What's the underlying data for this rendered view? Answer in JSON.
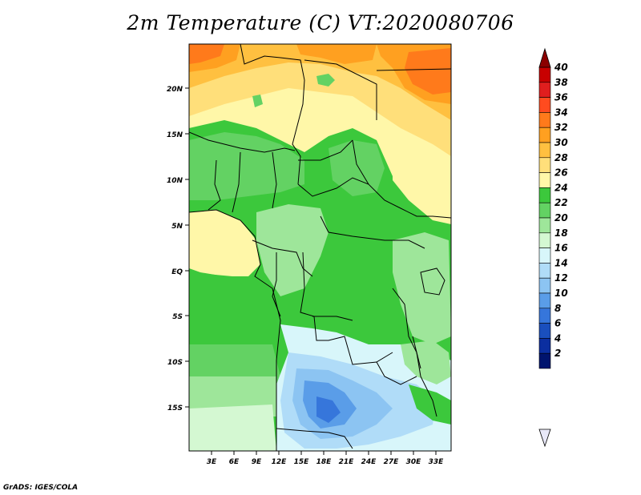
{
  "title": "2m Temperature (C) VT:2020080706",
  "footer": "GrADS: IGES/COLA",
  "map": {
    "lat_labels": [
      "20N",
      "15N",
      "10N",
      "5N",
      "EQ",
      "5S",
      "10S",
      "15S"
    ],
    "lon_labels": [
      "3E",
      "6E",
      "9E",
      "12E",
      "15E",
      "18E",
      "21E",
      "24E",
      "27E",
      "30E",
      "33E"
    ]
  },
  "colorbar": {
    "labels": [
      "40",
      "38",
      "36",
      "34",
      "32",
      "30",
      "28",
      "26",
      "24",
      "22",
      "20",
      "18",
      "16",
      "14",
      "12",
      "10",
      "8",
      "6",
      "4",
      "2"
    ],
    "colors": [
      "#a00000",
      "#c80000",
      "#e01e1e",
      "#ff4b1f",
      "#ff7a1b",
      "#ffa020",
      "#ffc040",
      "#ffdf7a",
      "#fff7a8",
      "#3cc83c",
      "#63d263",
      "#9ee69a",
      "#d4f8d2",
      "#d8f6fa",
      "#b0dcf8",
      "#8cc4f2",
      "#5a9de8",
      "#3676db",
      "#1a4fbd",
      "#0b2ea0",
      "#00146e",
      "#e0e0f0"
    ],
    "arrow_top": "#8b0000",
    "arrow_bottom": "#e8e8f8"
  }
}
